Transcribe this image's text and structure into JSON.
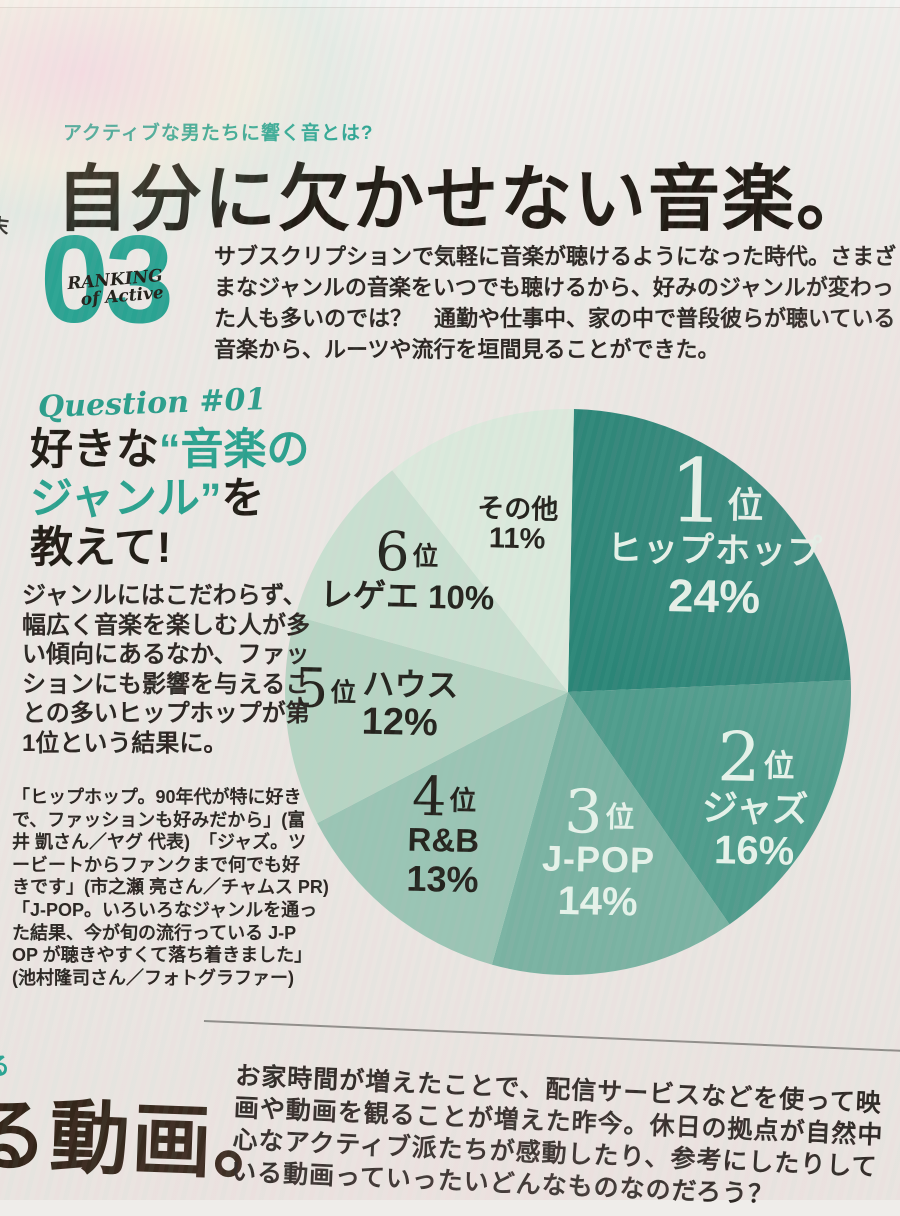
{
  "page": {
    "kicker": "アクティブな男たちに響く音とは?",
    "headline": "自分に欠かせない音楽。",
    "section_number": "03",
    "section_script_line1": "RANKING",
    "section_script_line2": "of Active",
    "intro_lines": [
      "サブスクリプションで気軽に音楽が聴けるようになった時代。さまざ",
      "まなジャンルの音楽をいつでも聴けるから、好みのジャンルが変わっ",
      "た人も多いのでは？　通勤や仕事中、家の中で普段彼らが聴いている",
      "音楽から、ルーツや流行を垣間見ることができた。"
    ],
    "edge_fragment_top": "末",
    "edge_fragment_bottom": "る"
  },
  "question": {
    "script": "Question #01",
    "headline": {
      "l1_black": "好きな",
      "l1_teal": "“音楽の",
      "l2_teal": "ジャンル”",
      "l2_black": "を",
      "l3_black": "教えて!"
    },
    "body_lines": [
      "ジャンルにはこだわらず、",
      "幅広く音楽を楽しむ人が多",
      "い傾向にあるなか、ファッ",
      "ションにも影響を与えるこ",
      "との多いヒップホップが第",
      "1位という結果に。"
    ],
    "quote_lines": [
      "「ヒップホップ。90年代が特に好き",
      "で、ファッションも好みだから」(富",
      "井 凱さん／ヤグ 代表)　「ジャズ。ツ",
      "ービートからファンクまで何でも好",
      "きです」(市之瀬 亮さん／チャムス PR)",
      "「J-POP。いろいろなジャンルを通っ",
      "た結果、今が旬の流行っている J-P",
      "OP が聴きやすくて落ち着きました」",
      "(池村隆司さん／フォトグラファー)"
    ]
  },
  "chart_data": {
    "type": "pie",
    "title": "好きな“音楽のジャンル”を教えて!",
    "unit": "%",
    "start_angle_deg": 0,
    "direction": "clockwise",
    "labels_position": "on-slice",
    "slices": [
      {
        "rank": "1",
        "rank_suffix": "位",
        "label": "ヒップホップ",
        "value": 24,
        "pct": "24%",
        "color": "#2b8577",
        "text": "light"
      },
      {
        "rank": "2",
        "rank_suffix": "位",
        "label": "ジャズ",
        "value": 16,
        "pct": "16%",
        "color": "#4f9c8c",
        "text": "light"
      },
      {
        "rank": "3",
        "rank_suffix": "位",
        "label": "J-POP",
        "value": 14,
        "pct": "14%",
        "color": "#7ab2a2",
        "text": "light"
      },
      {
        "rank": "4",
        "rank_suffix": "位",
        "label": "R&B",
        "value": 13,
        "pct": "13%",
        "color": "#9ac4b4",
        "text": "dark"
      },
      {
        "rank": "5",
        "rank_suffix": "位",
        "label": "ハウス",
        "value": 12,
        "pct": "12%",
        "color": "#b6d4c3",
        "text": "dark"
      },
      {
        "rank": "6",
        "rank_suffix": "位",
        "label": "レゲエ",
        "value": 10,
        "pct": "10%",
        "color": "#c9dfd0",
        "text": "dark"
      },
      {
        "rank": "",
        "rank_suffix": "",
        "label": "その他",
        "value": 11,
        "pct": "11%",
        "color": "#dbe9dc",
        "text": "dark"
      }
    ]
  },
  "footer": {
    "big_text": "る動画。",
    "para_lines": [
      "お家時間が増えたことで、配信サービスなどを使って映",
      "画や動画を観ることが増えた昨今。休日の拠点が自然中",
      "心なアクティブ派たちが感動したり、参考にしたりして",
      "いる動画っていったいどんなものなのだろう？"
    ]
  },
  "colors": {
    "accent_teal": "#2aa392",
    "headline_black": "#211b14",
    "footer_brown": "#332519",
    "page_bg": "#eae6e2"
  }
}
